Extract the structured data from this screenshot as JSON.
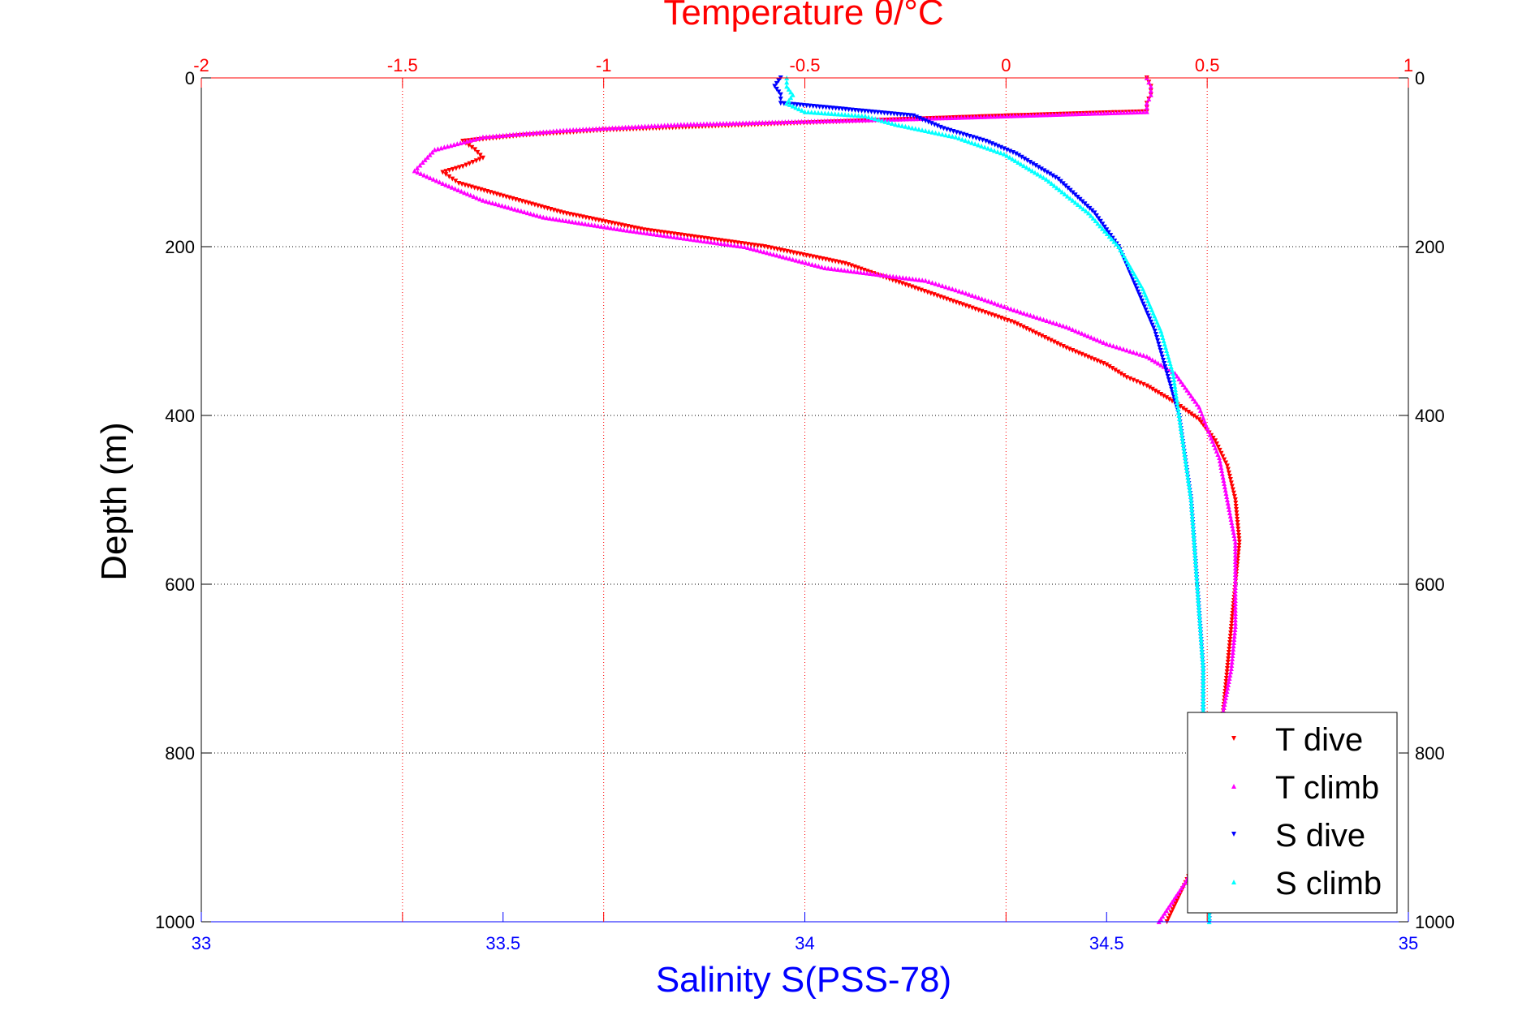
{
  "chart_data": {
    "type": "scatter",
    "title": "Temperature θ/°C",
    "xlabel": "Salinity S(PSS-78)",
    "ylabel": "Depth (m)",
    "top_axis": {
      "label": "Temperature θ/°C",
      "range": [
        -2,
        1
      ],
      "ticks": [
        -2,
        -1.5,
        -1,
        -0.5,
        0,
        0.5,
        1
      ],
      "tick_labels": [
        "-2",
        "-1.5",
        "-1",
        "-0.5",
        "0",
        "0.5",
        "1"
      ],
      "color": "#ff0000"
    },
    "bottom_axis": {
      "label": "Salinity S(PSS-78)",
      "range": [
        33,
        35
      ],
      "ticks": [
        33,
        33.5,
        34,
        34.5,
        35
      ],
      "tick_labels": [
        "33",
        "33.5",
        "34",
        "34.5",
        "35"
      ],
      "color": "#0000ff"
    },
    "y_axis": {
      "label": "Depth (m)",
      "range": [
        0,
        1000
      ],
      "reversed": true,
      "ticks": [
        0,
        200,
        400,
        600,
        800,
        1000
      ],
      "tick_labels": [
        "0",
        "200",
        "400",
        "600",
        "800",
        "1000"
      ]
    },
    "grid": true,
    "legend_position": "bottom-right",
    "series": [
      {
        "name": "T dive",
        "axis": "temperature",
        "color": "#ff0000",
        "marker": "triangle-down",
        "points": [
          [
            0.35,
            0
          ],
          [
            0.36,
            10
          ],
          [
            0.36,
            20
          ],
          [
            0.35,
            30
          ],
          [
            0.35,
            40
          ],
          [
            0.0,
            45
          ],
          [
            -0.6,
            55
          ],
          [
            -1.0,
            62
          ],
          [
            -1.2,
            68
          ],
          [
            -1.35,
            75
          ],
          [
            -1.32,
            85
          ],
          [
            -1.3,
            95
          ],
          [
            -1.35,
            105
          ],
          [
            -1.4,
            112
          ],
          [
            -1.36,
            125
          ],
          [
            -1.25,
            140
          ],
          [
            -1.1,
            160
          ],
          [
            -0.9,
            180
          ],
          [
            -0.75,
            190
          ],
          [
            -0.6,
            200
          ],
          [
            -0.4,
            220
          ],
          [
            -0.25,
            245
          ],
          [
            -0.1,
            270
          ],
          [
            0.02,
            290
          ],
          [
            0.15,
            320
          ],
          [
            0.25,
            340
          ],
          [
            0.3,
            355
          ],
          [
            0.35,
            365
          ],
          [
            0.42,
            385
          ],
          [
            0.48,
            405
          ],
          [
            0.52,
            430
          ],
          [
            0.55,
            460
          ],
          [
            0.57,
            500
          ],
          [
            0.58,
            550
          ],
          [
            0.57,
            600
          ],
          [
            0.56,
            650
          ],
          [
            0.55,
            700
          ],
          [
            0.54,
            750
          ],
          [
            0.53,
            800
          ],
          [
            0.52,
            850
          ],
          [
            0.5,
            900
          ],
          [
            0.45,
            950
          ],
          [
            0.4,
            1000
          ]
        ]
      },
      {
        "name": "T climb",
        "axis": "temperature",
        "color": "#ff00ff",
        "marker": "triangle-up",
        "points": [
          [
            0.35,
            0
          ],
          [
            0.36,
            10
          ],
          [
            0.36,
            20
          ],
          [
            0.35,
            30
          ],
          [
            0.35,
            40
          ],
          [
            -0.2,
            48
          ],
          [
            -0.8,
            55
          ],
          [
            -1.1,
            62
          ],
          [
            -1.3,
            70
          ],
          [
            -1.42,
            85
          ],
          [
            -1.45,
            100
          ],
          [
            -1.47,
            110
          ],
          [
            -1.4,
            125
          ],
          [
            -1.3,
            145
          ],
          [
            -1.15,
            165
          ],
          [
            -0.95,
            180
          ],
          [
            -0.8,
            190
          ],
          [
            -0.65,
            200
          ],
          [
            -0.45,
            225
          ],
          [
            -0.2,
            240
          ],
          [
            -0.1,
            255
          ],
          [
            0.02,
            275
          ],
          [
            0.15,
            295
          ],
          [
            0.25,
            315
          ],
          [
            0.35,
            330
          ],
          [
            0.42,
            350
          ],
          [
            0.45,
            370
          ],
          [
            0.48,
            390
          ],
          [
            0.5,
            415
          ],
          [
            0.53,
            450
          ],
          [
            0.55,
            500
          ],
          [
            0.57,
            550
          ],
          [
            0.57,
            600
          ],
          [
            0.57,
            650
          ],
          [
            0.56,
            700
          ],
          [
            0.54,
            750
          ],
          [
            0.53,
            800
          ],
          [
            0.51,
            850
          ],
          [
            0.49,
            900
          ],
          [
            0.45,
            950
          ],
          [
            0.38,
            1000
          ]
        ]
      },
      {
        "name": "S dive",
        "axis": "salinity",
        "color": "#0000ff",
        "marker": "triangle-down",
        "points": [
          [
            33.96,
            0
          ],
          [
            33.95,
            10
          ],
          [
            33.96,
            20
          ],
          [
            33.96,
            30
          ],
          [
            34.18,
            45
          ],
          [
            34.23,
            60
          ],
          [
            34.3,
            75
          ],
          [
            34.35,
            90
          ],
          [
            34.42,
            120
          ],
          [
            34.48,
            160
          ],
          [
            34.52,
            200
          ],
          [
            34.55,
            250
          ],
          [
            34.58,
            300
          ],
          [
            34.6,
            350
          ],
          [
            34.62,
            400
          ],
          [
            34.63,
            450
          ],
          [
            34.64,
            500
          ],
          [
            34.65,
            600
          ],
          [
            34.66,
            700
          ],
          [
            34.66,
            800
          ],
          [
            34.67,
            900
          ],
          [
            34.67,
            1000
          ]
        ]
      },
      {
        "name": "S climb",
        "axis": "salinity",
        "color": "#00ffff",
        "marker": "triangle-up",
        "points": [
          [
            33.97,
            0
          ],
          [
            33.97,
            10
          ],
          [
            33.98,
            20
          ],
          [
            33.97,
            30
          ],
          [
            34.0,
            40
          ],
          [
            34.1,
            45
          ],
          [
            34.15,
            55
          ],
          [
            34.25,
            70
          ],
          [
            34.33,
            90
          ],
          [
            34.4,
            120
          ],
          [
            34.47,
            160
          ],
          [
            34.52,
            200
          ],
          [
            34.56,
            250
          ],
          [
            34.59,
            300
          ],
          [
            34.61,
            350
          ],
          [
            34.62,
            400
          ],
          [
            34.63,
            450
          ],
          [
            34.64,
            500
          ],
          [
            34.65,
            600
          ],
          [
            34.66,
            700
          ],
          [
            34.66,
            800
          ],
          [
            34.67,
            900
          ],
          [
            34.67,
            1000
          ]
        ]
      }
    ]
  }
}
